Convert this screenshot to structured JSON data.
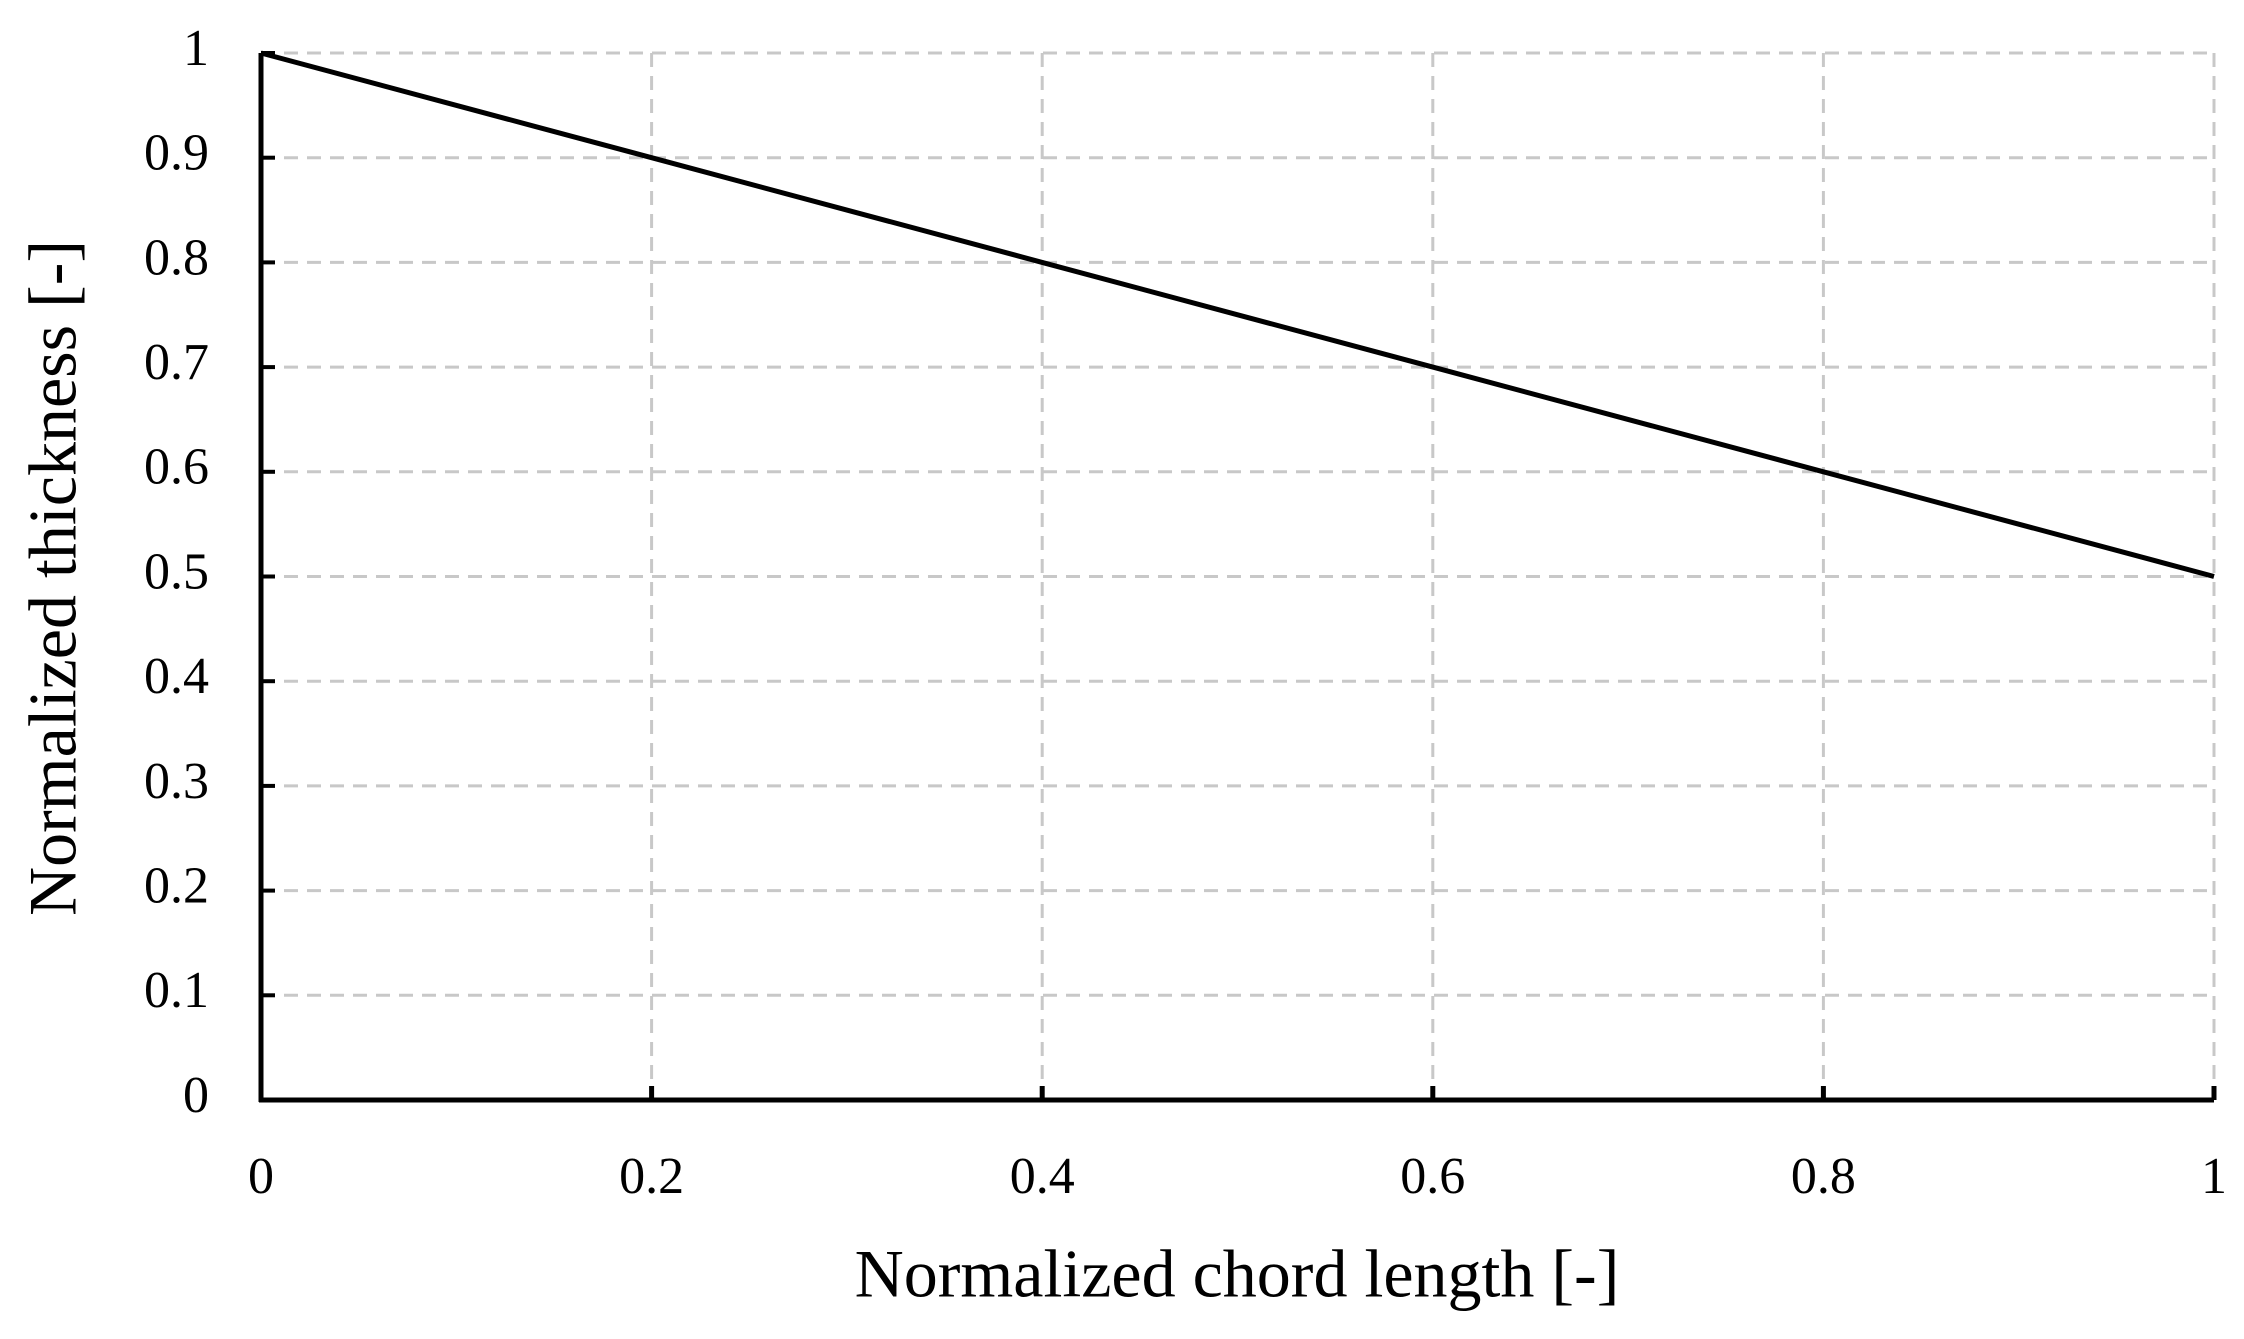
{
  "chart_data": {
    "type": "line",
    "x_label": "Normalized chord length [-]",
    "y_label": "Normalized thickness [-]",
    "series": [
      {
        "color": "#000000",
        "x": [
          0,
          0.2,
          0.4,
          0.6,
          0.8,
          1
        ],
        "values": [
          1,
          0.9,
          0.8,
          0.7,
          0.6,
          0.5
        ]
      }
    ],
    "xlim": [
      0,
      1
    ],
    "xticks": [
      0,
      0.2,
      0.4,
      0.6,
      0.8,
      1
    ],
    "ylim": [
      0,
      1
    ],
    "yticks": [
      0,
      0.1,
      0.2,
      0.3,
      0.4,
      0.5,
      0.6,
      0.7,
      0.8,
      0.9,
      1
    ],
    "grid": true
  }
}
